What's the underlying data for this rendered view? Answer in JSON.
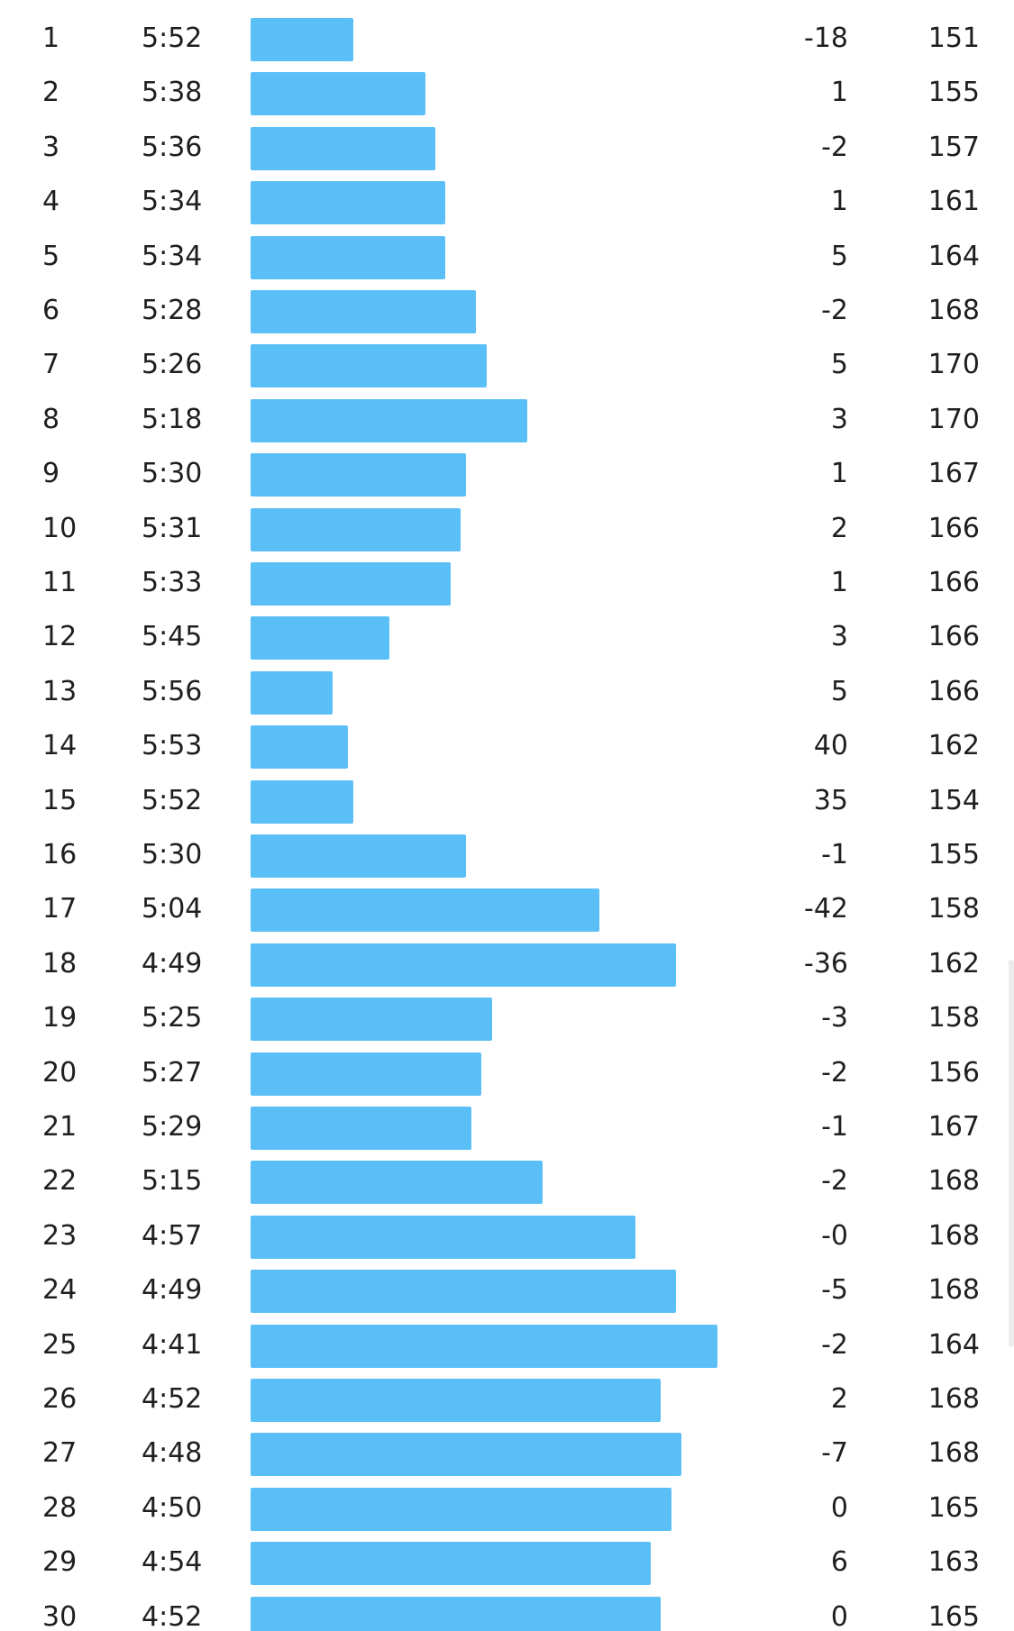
{
  "colors": {
    "bar": "#5bbff7"
  },
  "pace_scale": {
    "slowest_seconds": 372,
    "fastest_seconds": 281
  },
  "splits": [
    {
      "km": "1",
      "pace": "5:52",
      "pace_seconds": 352,
      "elev": "-18",
      "hr": "151"
    },
    {
      "km": "2",
      "pace": "5:38",
      "pace_seconds": 338,
      "elev": "1",
      "hr": "155"
    },
    {
      "km": "3",
      "pace": "5:36",
      "pace_seconds": 336,
      "elev": "-2",
      "hr": "157"
    },
    {
      "km": "4",
      "pace": "5:34",
      "pace_seconds": 334,
      "elev": "1",
      "hr": "161"
    },
    {
      "km": "5",
      "pace": "5:34",
      "pace_seconds": 334,
      "elev": "5",
      "hr": "164"
    },
    {
      "km": "6",
      "pace": "5:28",
      "pace_seconds": 328,
      "elev": "-2",
      "hr": "168"
    },
    {
      "km": "7",
      "pace": "5:26",
      "pace_seconds": 326,
      "elev": "5",
      "hr": "170"
    },
    {
      "km": "8",
      "pace": "5:18",
      "pace_seconds": 318,
      "elev": "3",
      "hr": "170"
    },
    {
      "km": "9",
      "pace": "5:30",
      "pace_seconds": 330,
      "elev": "1",
      "hr": "167"
    },
    {
      "km": "10",
      "pace": "5:31",
      "pace_seconds": 331,
      "elev": "2",
      "hr": "166"
    },
    {
      "km": "11",
      "pace": "5:33",
      "pace_seconds": 333,
      "elev": "1",
      "hr": "166"
    },
    {
      "km": "12",
      "pace": "5:45",
      "pace_seconds": 345,
      "elev": "3",
      "hr": "166"
    },
    {
      "km": "13",
      "pace": "5:56",
      "pace_seconds": 356,
      "elev": "5",
      "hr": "166"
    },
    {
      "km": "14",
      "pace": "5:53",
      "pace_seconds": 353,
      "elev": "40",
      "hr": "162"
    },
    {
      "km": "15",
      "pace": "5:52",
      "pace_seconds": 352,
      "elev": "35",
      "hr": "154"
    },
    {
      "km": "16",
      "pace": "5:30",
      "pace_seconds": 330,
      "elev": "-1",
      "hr": "155"
    },
    {
      "km": "17",
      "pace": "5:04",
      "pace_seconds": 304,
      "elev": "-42",
      "hr": "158"
    },
    {
      "km": "18",
      "pace": "4:49",
      "pace_seconds": 289,
      "elev": "-36",
      "hr": "162"
    },
    {
      "km": "19",
      "pace": "5:25",
      "pace_seconds": 325,
      "elev": "-3",
      "hr": "158"
    },
    {
      "km": "20",
      "pace": "5:27",
      "pace_seconds": 327,
      "elev": "-2",
      "hr": "156"
    },
    {
      "km": "21",
      "pace": "5:29",
      "pace_seconds": 329,
      "elev": "-1",
      "hr": "167"
    },
    {
      "km": "22",
      "pace": "5:15",
      "pace_seconds": 315,
      "elev": "-2",
      "hr": "168"
    },
    {
      "km": "23",
      "pace": "4:57",
      "pace_seconds": 297,
      "elev": "-0",
      "hr": "168"
    },
    {
      "km": "24",
      "pace": "4:49",
      "pace_seconds": 289,
      "elev": "-5",
      "hr": "168"
    },
    {
      "km": "25",
      "pace": "4:41",
      "pace_seconds": 281,
      "elev": "-2",
      "hr": "164"
    },
    {
      "km": "26",
      "pace": "4:52",
      "pace_seconds": 292,
      "elev": "2",
      "hr": "168"
    },
    {
      "km": "27",
      "pace": "4:48",
      "pace_seconds": 288,
      "elev": "-7",
      "hr": "168"
    },
    {
      "km": "28",
      "pace": "4:50",
      "pace_seconds": 290,
      "elev": "0",
      "hr": "165"
    },
    {
      "km": "29",
      "pace": "4:54",
      "pace_seconds": 294,
      "elev": "6",
      "hr": "163"
    },
    {
      "km": "30",
      "pace": "4:52",
      "pace_seconds": 292,
      "elev": "0",
      "hr": "165"
    }
  ]
}
